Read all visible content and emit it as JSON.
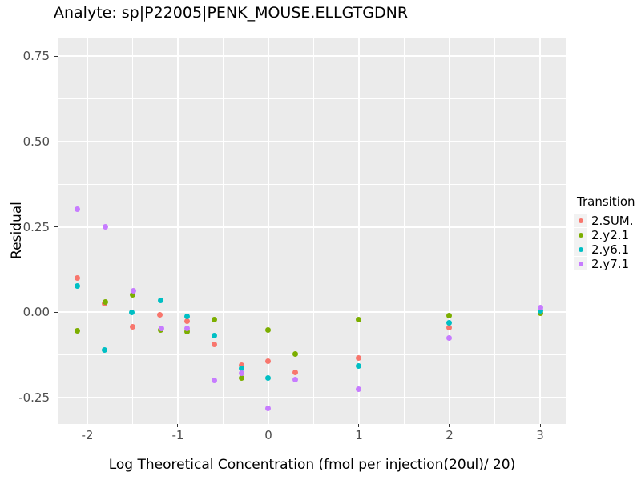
{
  "title": "Analyte: sp|P22005|PENK_MOUSE.ELLGTGDNR",
  "chart_data": {
    "type": "scatter",
    "title": "Analyte: sp|P22005|PENK_MOUSE.ELLGTGDNR",
    "xlabel": "Log Theoretical Concentration (fmol per injection(20ul)/ 20)",
    "ylabel": "Residual",
    "xlim": [
      -2.327,
      3.292
    ],
    "ylim": [
      -0.327,
      0.805
    ],
    "grid": true,
    "panel_background": "#EBEBEB",
    "gridline_color": "#ffffff",
    "x_major_ticks": [
      -2,
      -1,
      0,
      1,
      2,
      3
    ],
    "x_tick_labels": [
      "-2",
      "-1",
      "0",
      "1",
      "2",
      "3"
    ],
    "x_minor_ticks": [
      -1.5,
      -0.5,
      0.5,
      1.5,
      2.5
    ],
    "y_major_ticks": [
      0.75,
      0.5,
      0.25,
      0,
      -0.25
    ],
    "y_tick_labels": [
      "0.75",
      "0.50",
      "0.25",
      "0.00",
      "-0.25"
    ],
    "y_minor_ticks": [
      0.625,
      0.375,
      0.125,
      -0.125
    ],
    "legend_position": "right",
    "legend_title": "Transition",
    "series": [
      {
        "name": "2.SUM.",
        "color": "#F8766D",
        "points": [
          [
            -2.35,
            0.573
          ],
          [
            -2.35,
            0.327
          ],
          [
            -2.35,
            0.195
          ],
          [
            -2.11,
            0.1
          ],
          [
            -1.81,
            0.026
          ],
          [
            -1.5,
            -0.042
          ],
          [
            -1.2,
            -0.006
          ],
          [
            -0.9,
            -0.025
          ],
          [
            -0.6,
            -0.093
          ],
          [
            -0.3,
            -0.154
          ],
          [
            0.0,
            -0.142
          ],
          [
            0.3,
            -0.176
          ],
          [
            1.0,
            -0.134
          ],
          [
            2.0,
            -0.044
          ]
        ]
      },
      {
        "name": "2.y2.1",
        "color": "#7CAE00",
        "points": [
          [
            -2.35,
            0.493
          ],
          [
            -2.35,
            0.121
          ],
          [
            -2.35,
            0.082
          ],
          [
            -2.11,
            -0.054
          ],
          [
            -1.8,
            0.03
          ],
          [
            -1.5,
            0.052
          ],
          [
            -1.19,
            -0.052
          ],
          [
            -0.9,
            -0.057
          ],
          [
            -0.6,
            -0.021
          ],
          [
            -0.3,
            -0.192
          ],
          [
            0.0,
            -0.052
          ],
          [
            0.3,
            -0.123
          ],
          [
            1.0,
            -0.021
          ],
          [
            2.0,
            -0.009
          ],
          [
            3.0,
            -0.003
          ]
        ]
      },
      {
        "name": "2.y6.1",
        "color": "#00BFC4",
        "points": [
          [
            -2.35,
            0.707
          ],
          [
            -2.35,
            0.507
          ],
          [
            -2.35,
            0.258
          ],
          [
            -2.11,
            0.078
          ],
          [
            -1.81,
            -0.11
          ],
          [
            -1.51,
            0.0
          ],
          [
            -1.19,
            0.034
          ],
          [
            -0.9,
            -0.012
          ],
          [
            -0.6,
            -0.067
          ],
          [
            -0.3,
            -0.165
          ],
          [
            0.0,
            -0.192
          ],
          [
            1.0,
            -0.157
          ],
          [
            2.0,
            -0.03
          ],
          [
            3.0,
            0.004
          ]
        ]
      },
      {
        "name": "2.y7.1",
        "color": "#C77CFF",
        "points": [
          [
            -2.35,
            0.745
          ],
          [
            -2.35,
            0.518
          ],
          [
            -2.35,
            0.399
          ],
          [
            -2.11,
            0.303
          ],
          [
            -1.8,
            0.25
          ],
          [
            -1.49,
            0.064
          ],
          [
            -1.18,
            -0.046
          ],
          [
            -0.9,
            -0.048
          ],
          [
            -0.6,
            -0.2
          ],
          [
            -0.3,
            -0.179
          ],
          [
            0.0,
            -0.282
          ],
          [
            0.3,
            -0.198
          ],
          [
            1.0,
            -0.225
          ],
          [
            2.0,
            -0.075
          ],
          [
            3.0,
            0.015
          ]
        ]
      }
    ]
  }
}
